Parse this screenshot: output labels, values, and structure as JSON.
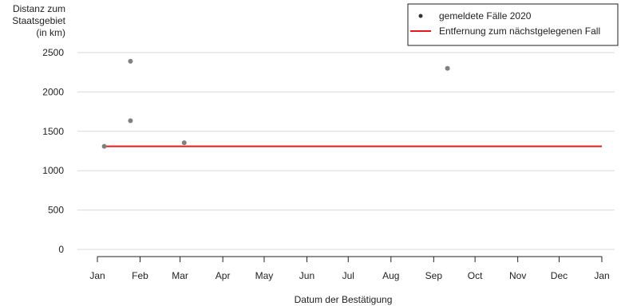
{
  "chart_data": {
    "type": "scatter",
    "ylabel_lines": [
      "Distanz zum",
      "Staatsgebiet",
      "(in km)"
    ],
    "xlabel": "Datum der Bestätigung",
    "ylim": [
      0,
      2500
    ],
    "y_ticks": [
      0,
      500,
      1000,
      1500,
      2000,
      2500
    ],
    "x_ticks": [
      "Jan",
      "Feb",
      "Mar",
      "Apr",
      "May",
      "Jun",
      "Jul",
      "Aug",
      "Sep",
      "Oct",
      "Nov",
      "Dec",
      "Jan"
    ],
    "x_range_dates": [
      "2020-01-01",
      "2021-01-01"
    ],
    "grid": "horizontal",
    "legend_position": "top-right",
    "series": [
      {
        "name": "gemeldete Fälle 2020",
        "kind": "points",
        "color": "#808080",
        "points": [
          {
            "date": "2020-01-06",
            "km": 1310
          },
          {
            "date": "2020-01-25",
            "km": 2390
          },
          {
            "date": "2020-01-25",
            "km": 1635
          },
          {
            "date": "2020-03-04",
            "km": 1355
          },
          {
            "date": "2020-09-11",
            "km": 2300
          }
        ]
      },
      {
        "name": "Entfernung zum nächstgelegenen Fall",
        "kind": "line",
        "color": "#e8191b",
        "points": [
          {
            "date": "2020-01-06",
            "km": 1310
          },
          {
            "date": "2021-01-01",
            "km": 1310
          }
        ]
      }
    ]
  }
}
